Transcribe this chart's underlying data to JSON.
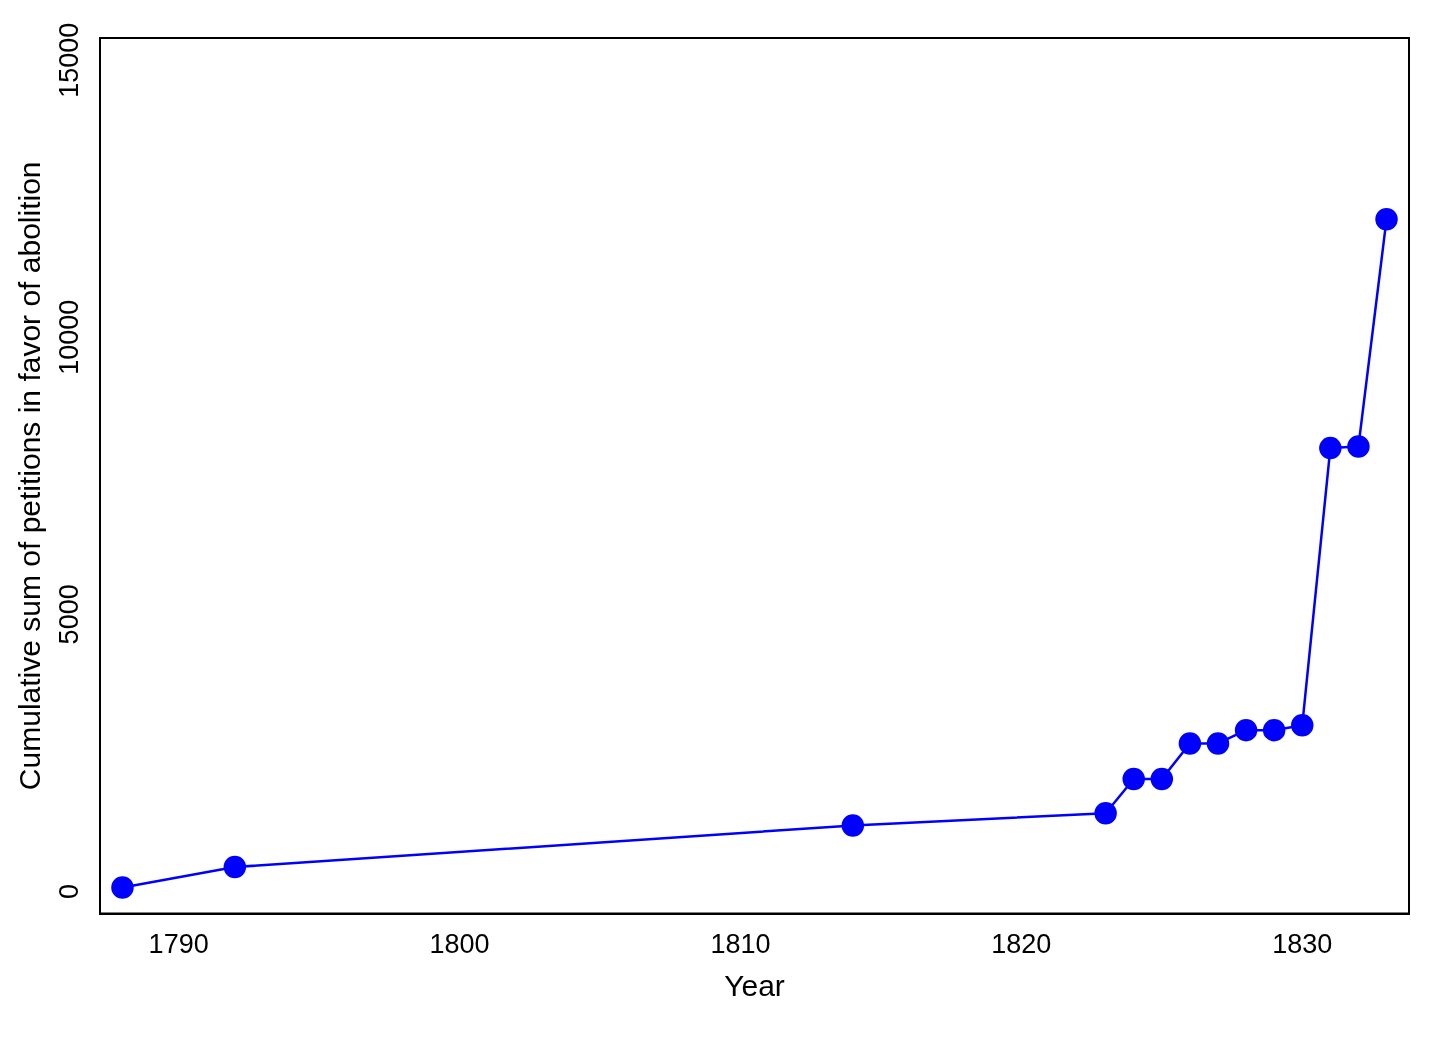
{
  "chart_data": {
    "type": "line",
    "xlabel": "Year",
    "ylabel": "Cumulative sum of petitions in favor of abolition",
    "x": [
      1788,
      1792,
      1814,
      1823,
      1824,
      1825,
      1826,
      1827,
      1828,
      1829,
      1830,
      1831,
      1832,
      1833
    ],
    "series": [
      {
        "color": "#0000ff",
        "values": [
          70,
          440,
          1190,
          1410,
          2030,
          2030,
          2670,
          2670,
          2910,
          2910,
          3000,
          8000,
          8030,
          12130
        ]
      }
    ],
    "xlim": [
      1787.2,
      1833.8
    ],
    "xticks": [
      1790,
      1800,
      1810,
      1820,
      1830
    ],
    "ylim": [
      -400,
      15400
    ],
    "yticks": [
      0,
      5000,
      10000,
      15000
    ],
    "grid": false,
    "legend": false,
    "marker": "circle",
    "line_style": "solid"
  }
}
